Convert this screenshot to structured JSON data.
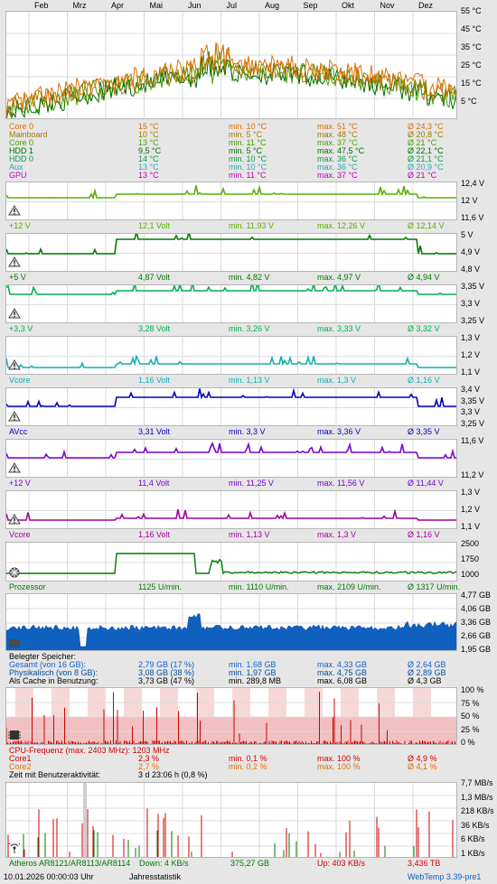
{
  "months": [
    "Feb",
    "Mrz",
    "Apr",
    "Mai",
    "Jun",
    "Jul",
    "Aug",
    "Sep",
    "Okt",
    "Nov",
    "Dez"
  ],
  "temp": {
    "ylabels": [
      "55 °C",
      "45 °C",
      "35 °C",
      "25 °C",
      "15 °C",
      "5 °C"
    ],
    "rows": [
      {
        "name": "Core 0",
        "cur": "15 °C",
        "min": "min. 10 °C",
        "max": "max. 51 °C",
        "avg": "Ø 24,3 °C",
        "color": "#e07000"
      },
      {
        "name": "Mainboard",
        "cur": "10 °C",
        "min": "min. 5 °C",
        "max": "max. 48 °C",
        "avg": "Ø 20,8 °C",
        "color": "#a07800"
      },
      {
        "name": "Core 0",
        "cur": "13 °C",
        "min": "min. 11 °C",
        "max": "max. 37 °C",
        "avg": "Ø 21 °C",
        "color": "#4aa000"
      },
      {
        "name": "HDD 1",
        "cur": "9,5 °C",
        "min": "min. 5 °C",
        "max": "max. 47,5 °C",
        "avg": "Ø 22,1 °C",
        "color": "#007000"
      },
      {
        "name": "HDD 0",
        "cur": "14 °C",
        "min": "min. 10 °C",
        "max": "max. 36 °C",
        "avg": "Ø 21,1 °C",
        "color": "#00a050"
      },
      {
        "name": "Aux",
        "cur": "13 °C",
        "min": "min. 10 °C",
        "max": "max. 36 °C",
        "avg": "Ø 20,9 °C",
        "color": "#2aaab0"
      },
      {
        "name": "GPU",
        "cur": "13 °C",
        "min": "min. 11 °C",
        "max": "max. 37 °C",
        "avg": "Ø 21 °C",
        "color": "#c000c0"
      }
    ]
  },
  "volts": [
    {
      "name": "+12 V",
      "cur": "12,1 Volt",
      "min": "min. 11,93 V",
      "max": "max. 12,26 V",
      "avg": "Ø 12,14 V",
      "color": "#58b000",
      "yl": [
        "12,4 V",
        "12 V",
        "11,6 V"
      ]
    },
    {
      "name": "+5 V",
      "cur": "4,87 Volt",
      "min": "min. 4,82 V",
      "max": "max. 4,97 V",
      "avg": "Ø 4,94 V",
      "color": "#007a00",
      "yl": [
        "5 V",
        "4,9 V",
        "4,8 V"
      ]
    },
    {
      "name": "+3,3 V",
      "cur": "3,28 Volt",
      "min": "min. 3,26 V",
      "max": "max. 3,33 V",
      "avg": "Ø 3,32 V",
      "color": "#00b050",
      "yl": [
        "3,35 V",
        "3,3 V",
        "3,25 V"
      ]
    },
    {
      "name": "Vcore",
      "cur": "1,16 Volt",
      "min": "min. 1,13 V",
      "max": "max. 1,3 V",
      "avg": "Ø 1,16 V",
      "color": "#10b0b0",
      "yl": [
        "1,3 V",
        "1,2 V",
        "1,1 V"
      ]
    },
    {
      "name": "AVcc",
      "cur": "3,31 Volt",
      "min": "min. 3,3 V",
      "max": "max. 3,36 V",
      "avg": "Ø 3,35 V",
      "color": "#0000c0",
      "yl": [
        "3,4 V",
        "3,35 V",
        "3,3 V",
        "3,25 V"
      ]
    },
    {
      "name": "+12 V",
      "cur": "11,4 Volt",
      "min": "min. 11,25 V",
      "max": "max. 11,56 V",
      "avg": "Ø 11,44 V",
      "color": "#7a00d0",
      "yl": [
        "11,6 V",
        "11,2 V"
      ]
    },
    {
      "name": "Vcore",
      "cur": "1,16 Volt",
      "min": "min. 1,13 V",
      "max": "max. 1,3 V",
      "avg": "Ø 1,16 V",
      "color": "#a000a0",
      "yl": [
        "1,3 V",
        "1,2 V",
        "1,1 V"
      ]
    }
  ],
  "fan": {
    "name": "Prozessor",
    "cur": "1125 U/min.",
    "min": "min. 1110 U/min.",
    "max": "max. 2109 U/min.",
    "avg": "Ø 1317 U/min.",
    "color": "#007a00",
    "yl": [
      "2500",
      "1750",
      "1000"
    ]
  },
  "mem": {
    "yl": [
      "4,77 GB",
      "4,06 GB",
      "3,36 GB",
      "2,66 GB",
      "1,95 GB"
    ],
    "title": "Belegter Speicher:",
    "rows": [
      {
        "name": "Gesamt (von 16 GB):",
        "cur": "2,79 GB (17 %)",
        "min": "min. 1,68 GB",
        "max": "max. 4,33 GB",
        "avg": "Ø 2,64 GB",
        "color": "#1060d0"
      },
      {
        "name": "Physikalisch (von 8 GB):",
        "cur": "3,08 GB (38 %)",
        "min": "min. 1,97 GB",
        "max": "max. 4,75 GB",
        "avg": "Ø 2,89 GB",
        "color": "#0050a0"
      },
      {
        "name": "Als Cache in Benutzung:",
        "cur": "3,73 GB (47 %)",
        "min": "min. 289,8 MB",
        "max": "max. 6,08 GB",
        "avg": "Ø 4,3 GB",
        "color": "#000000"
      }
    ]
  },
  "cpu": {
    "yl": [
      "100 %",
      "75 %",
      "50 %",
      "25 %",
      "0 %"
    ],
    "freq": "CPU-Frequenz (max. 2403 MHz): 1203 MHz",
    "rows": [
      {
        "name": "Core1",
        "cur": "2,3 %",
        "min": "min. 0,1 %",
        "max": "max. 100 %",
        "avg": "Ø 4,9 %",
        "color": "#d00000"
      },
      {
        "name": "Core2",
        "cur": "2,7 %",
        "min": "min. 0,2 %",
        "max": "max. 100 %",
        "avg": "Ø 4,1 %",
        "color": "#e07000"
      }
    ],
    "activity_label": "Zeit mit Benutzeraktivität:",
    "activity_value": "3 d 23:06 h (0,8 %)"
  },
  "net": {
    "yl": [
      "7,7 MB/s",
      "1,3 MB/s",
      "218 KB/s",
      "36 KB/s",
      "6 KB/s",
      "1 KB/s"
    ],
    "adapter": "Atheros AR8121/AR8113/AR8114",
    "down": "Down: 4 KB/s",
    "down_total": "375,27 GB",
    "up": "Up: 403 KB/s",
    "up_total": "3,436 TB"
  },
  "footer": {
    "datetime": "10.01.2026 00:00:03 Uhr",
    "period": "Jahresstatistik",
    "app": "WebTemp 3.39-pre1"
  }
}
